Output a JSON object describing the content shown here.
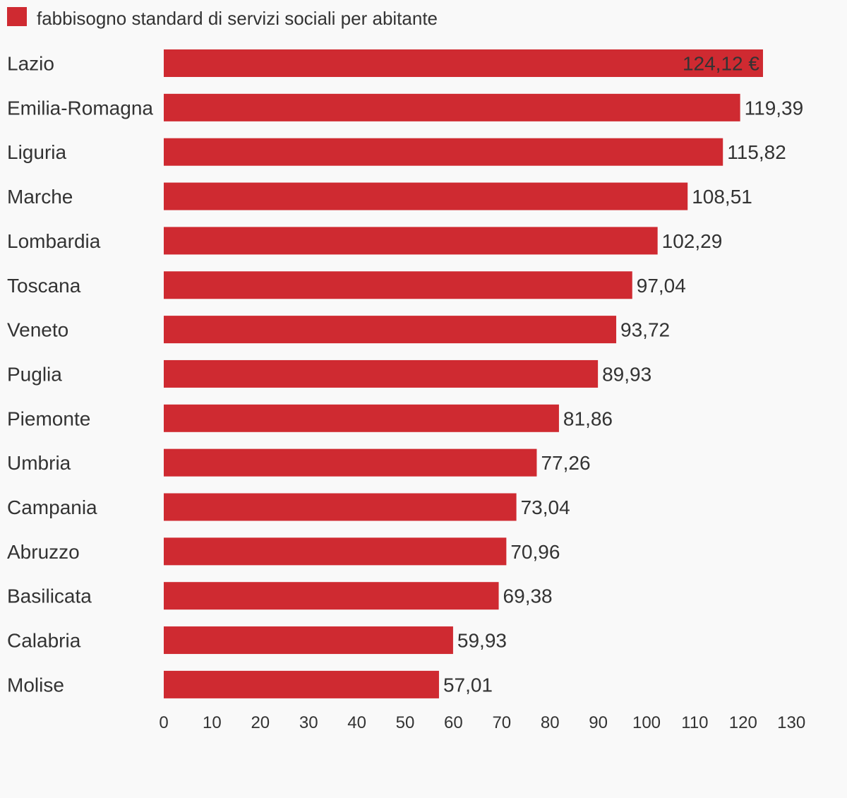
{
  "colors": {
    "bar": "#cf2a31",
    "text": "#333333",
    "background": "#f9f9f9"
  },
  "chart_data": {
    "type": "bar",
    "orientation": "horizontal",
    "legend_position": "top-left",
    "grid": false,
    "series": [
      {
        "name": "fabbisogno standard di servizi sociali per abitante",
        "values": [
          124.12,
          119.39,
          115.82,
          108.51,
          102.29,
          97.04,
          93.72,
          89.93,
          81.86,
          77.26,
          73.04,
          70.96,
          69.38,
          59.93,
          57.01
        ]
      }
    ],
    "categories": [
      "Lazio",
      "Emilia-Romagna",
      "Liguria",
      "Marche",
      "Lombardia",
      "Toscana",
      "Veneto",
      "Puglia",
      "Piemonte",
      "Umbria",
      "Campania",
      "Abruzzo",
      "Basilicata",
      "Calabria",
      "Molise"
    ],
    "value_labels": [
      "124,12 €",
      "119,39",
      "115,82",
      "108,51",
      "102,29",
      "97,04",
      "93,72",
      "89,93",
      "81,86",
      "77,26",
      "73,04",
      "70,96",
      "69,38",
      "59,93",
      "57,01"
    ],
    "xlim": [
      0,
      130
    ],
    "x_ticks": [
      "0",
      "10",
      "20",
      "30",
      "40",
      "50",
      "60",
      "70",
      "80",
      "90",
      "100",
      "110",
      "120",
      "130"
    ]
  }
}
